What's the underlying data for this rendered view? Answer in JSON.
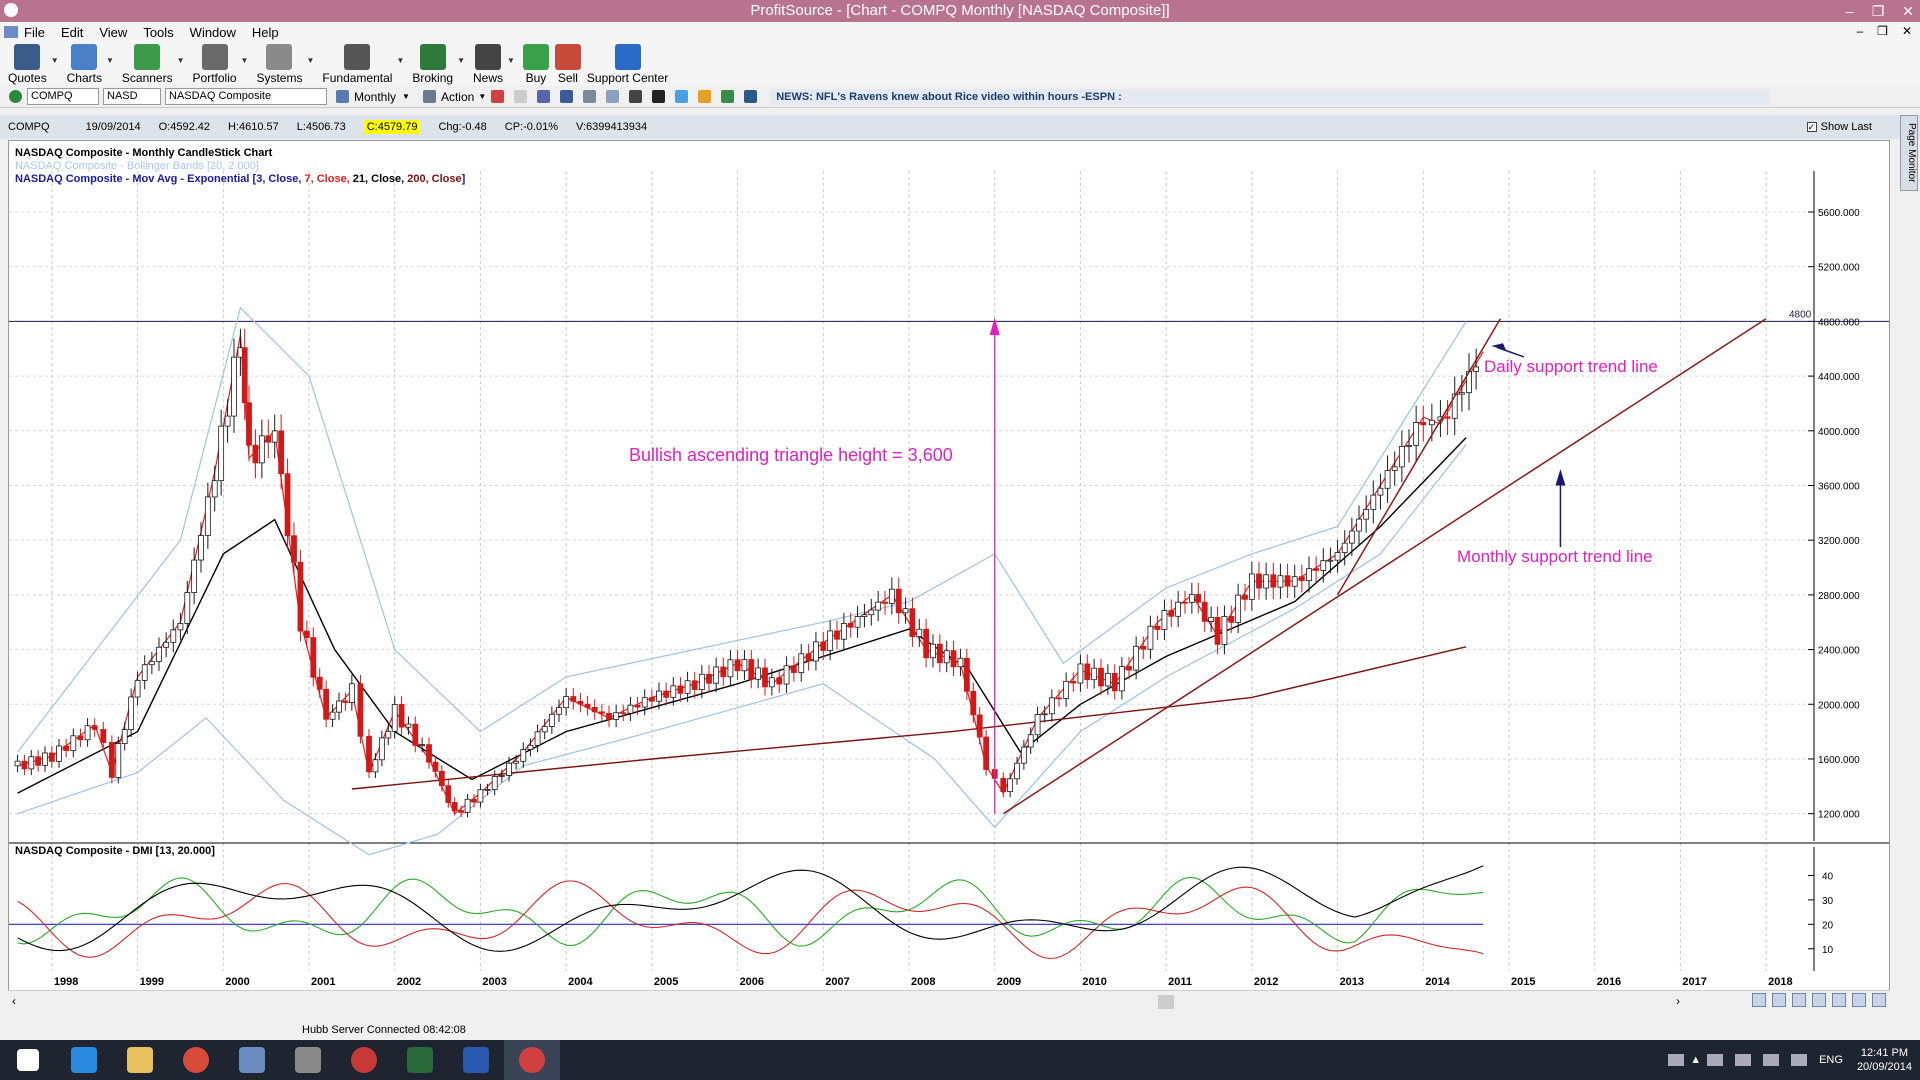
{
  "window": {
    "title": "ProfitSource - [Chart - COMPQ Monthly [NASDAQ Composite]]"
  },
  "menu": [
    "File",
    "Edit",
    "View",
    "Tools",
    "Window",
    "Help"
  ],
  "toolbar": [
    {
      "label": "Quotes",
      "color": "#3a5a8a",
      "dropdown": true
    },
    {
      "label": "Charts",
      "color": "#4a80c8",
      "dropdown": true
    },
    {
      "label": "Scanners",
      "color": "#3c9a4a",
      "dropdown": true
    },
    {
      "label": "Portfolio",
      "color": "#6a6a6a",
      "dropdown": true
    },
    {
      "label": "Systems",
      "color": "#8a8a8a",
      "dropdown": true
    },
    {
      "label": "Fundamental",
      "color": "#555555",
      "dropdown": true
    },
    {
      "label": "Broking",
      "color": "#2d7a3a",
      "dropdown": true
    },
    {
      "label": "News",
      "color": "#444444",
      "dropdown": true
    },
    {
      "label": "Buy",
      "color": "#3aa04a",
      "dropdown": false
    },
    {
      "label": "Sell",
      "color": "#c84a3a",
      "dropdown": false
    },
    {
      "label": "Support Center",
      "color": "#2a6ac8",
      "dropdown": false
    }
  ],
  "symbolbar": {
    "symbol": "COMPQ",
    "exchange": "NASD",
    "name": "NASDAQ Composite",
    "period": "Monthly",
    "action": "Action",
    "news": "NEWS: NFL's Ravens knew about Rice video within hours -ESPN :"
  },
  "infobar": {
    "symbol": "COMPQ",
    "date": "19/09/2014",
    "open": "O:4592.42",
    "high": "H:4610.57",
    "low": "L:4506.73",
    "close": "C:4579.79",
    "change": "Chg:-0.48",
    "change_pct": "CP:-0.01%",
    "volume": "V:6399413934",
    "show_last": "Show Last"
  },
  "legend": {
    "line1": "NASDAQ Composite - Monthly CandleStick Chart",
    "line2": "NASDAQ Composite - Bollinger Bands [20, 2.000]",
    "line3_prefix": "NASDAQ Composite - Mov Avg - Exponential [",
    "ma": [
      {
        "text": "3, Close, ",
        "color": "#1a1aa0"
      },
      {
        "text": "7, Close, ",
        "color": "#e02020"
      },
      {
        "text": "21, Close, ",
        "color": "#000000"
      },
      {
        "text": "200, Close",
        "color": "#7a1010"
      }
    ],
    "line3_suffix": "]"
  },
  "dmi_label": "NASDAQ Composite - DMI [13, 20.000]",
  "annotations": {
    "triangle": "Bullish ascending triangle height = 3,600",
    "daily": "Daily support trend line",
    "monthly": "Monthly support trend line",
    "level_label": "4800"
  },
  "chart_data": {
    "type": "candlestick",
    "title": "NASDAQ Composite - Monthly CandleStick Chart",
    "x_tick_labels": [
      "1998",
      "1999",
      "2000",
      "2001",
      "2002",
      "2003",
      "2004",
      "2005",
      "2006",
      "2007",
      "2008",
      "2009",
      "2010",
      "2011",
      "2012",
      "2013",
      "2014",
      "2015",
      "2016",
      "2017",
      "2018"
    ],
    "y_tick_labels": [
      "1200.000",
      "1600.000",
      "2000.000",
      "2400.000",
      "2800.000",
      "3200.000",
      "3600.000",
      "4000.000",
      "4400.000",
      "4800.000",
      "5200.000",
      "5600.000"
    ],
    "ylim": [
      1000,
      5900
    ],
    "dmi_ticks": [
      "10",
      "20",
      "30",
      "40"
    ],
    "horizontal_level": 4800,
    "close_path": [
      [
        1997.6,
        1550
      ],
      [
        1998.0,
        1620
      ],
      [
        1998.5,
        1850
      ],
      [
        1998.7,
        1500
      ],
      [
        1999.0,
        2200
      ],
      [
        1999.5,
        2600
      ],
      [
        1999.9,
        3700
      ],
      [
        2000.2,
        4700
      ],
      [
        2000.3,
        3800
      ],
      [
        2000.6,
        4000
      ],
      [
        2000.9,
        2600
      ],
      [
        2001.2,
        1900
      ],
      [
        2001.5,
        2100
      ],
      [
        2001.7,
        1500
      ],
      [
        2002.0,
        1950
      ],
      [
        2002.4,
        1600
      ],
      [
        2002.7,
        1200
      ],
      [
        2003.0,
        1350
      ],
      [
        2003.5,
        1650
      ],
      [
        2004.0,
        2050
      ],
      [
        2004.5,
        1900
      ],
      [
        2005.0,
        2050
      ],
      [
        2005.5,
        2150
      ],
      [
        2006.0,
        2300
      ],
      [
        2006.4,
        2150
      ],
      [
        2007.0,
        2450
      ],
      [
        2007.8,
        2800
      ],
      [
        2008.2,
        2400
      ],
      [
        2008.6,
        2300
      ],
      [
        2008.9,
        1550
      ],
      [
        2009.1,
        1350
      ],
      [
        2009.5,
        1900
      ],
      [
        2010.0,
        2250
      ],
      [
        2010.4,
        2150
      ],
      [
        2010.9,
        2600
      ],
      [
        2011.3,
        2800
      ],
      [
        2011.6,
        2500
      ],
      [
        2012.0,
        2900
      ],
      [
        2012.5,
        2900
      ],
      [
        2013.0,
        3100
      ],
      [
        2013.5,
        3600
      ],
      [
        2014.0,
        4100
      ],
      [
        2014.2,
        4050
      ],
      [
        2014.7,
        4580
      ]
    ],
    "ma200_path": [
      [
        2001.5,
        1380
      ],
      [
        2005.0,
        1600
      ],
      [
        2008.5,
        1800
      ],
      [
        2012.0,
        2050
      ],
      [
        2014.5,
        2420
      ]
    ],
    "bb_upper": [
      [
        1997.6,
        1650
      ],
      [
        1999.5,
        3200
      ],
      [
        2000.2,
        4900
      ],
      [
        2001.0,
        4400
      ],
      [
        2002.0,
        2400
      ],
      [
        2003.0,
        1800
      ],
      [
        2004.0,
        2200
      ],
      [
        2007.0,
        2600
      ],
      [
        2008.0,
        2750
      ],
      [
        2009.0,
        3100
      ],
      [
        2009.8,
        2300
      ],
      [
        2011.0,
        2850
      ],
      [
        2012.0,
        3100
      ],
      [
        2013.0,
        3300
      ],
      [
        2014.5,
        4800
      ]
    ],
    "bb_lower": [
      [
        1997.6,
        1200
      ],
      [
        1999.0,
        1500
      ],
      [
        1999.8,
        1900
      ],
      [
        2000.7,
        1300
      ],
      [
        2001.7,
        900
      ],
      [
        2002.5,
        1050
      ],
      [
        2003.5,
        1550
      ],
      [
        2005.0,
        1800
      ],
      [
        2007.0,
        2150
      ],
      [
        2008.3,
        1600
      ],
      [
        2009.0,
        1100
      ],
      [
        2010.0,
        1800
      ],
      [
        2011.0,
        2200
      ],
      [
        2012.5,
        2700
      ],
      [
        2013.5,
        3100
      ],
      [
        2014.5,
        3900
      ]
    ],
    "ema21_path": [
      [
        1997.6,
        1350
      ],
      [
        1999.0,
        1800
      ],
      [
        2000.0,
        3100
      ],
      [
        2000.6,
        3350
      ],
      [
        2001.3,
        2400
      ],
      [
        2002.0,
        1800
      ],
      [
        2002.9,
        1450
      ],
      [
        2004.0,
        1800
      ],
      [
        2006.0,
        2150
      ],
      [
        2008.0,
        2550
      ],
      [
        2008.7,
        2250
      ],
      [
        2009.3,
        1650
      ],
      [
        2010.0,
        2000
      ],
      [
        2011.0,
        2350
      ],
      [
        2012.5,
        2750
      ],
      [
        2013.5,
        3300
      ],
      [
        2014.5,
        3950
      ]
    ],
    "monthly_trend": [
      [
        2009.1,
        1200
      ],
      [
        2018.0,
        4820
      ]
    ],
    "daily_trend": [
      [
        2013.0,
        2800
      ],
      [
        2014.9,
        4820
      ]
    ]
  }
}
